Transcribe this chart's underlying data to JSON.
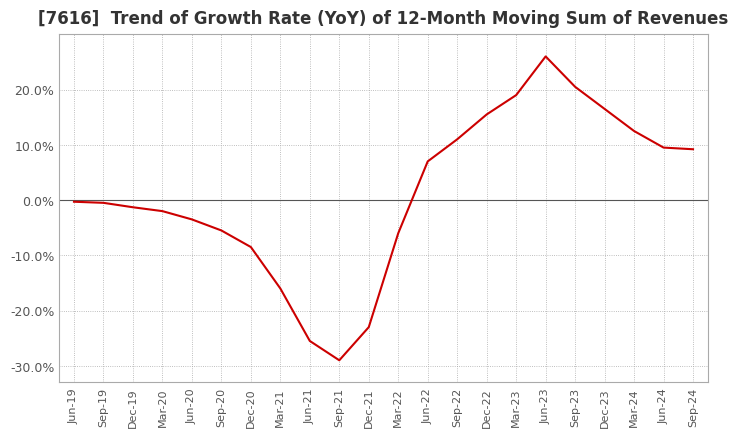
{
  "title": "[7616]  Trend of Growth Rate (YoY) of 12-Month Moving Sum of Revenues",
  "title_fontsize": 12,
  "line_color": "#cc0000",
  "background_color": "#ffffff",
  "grid_color": "#aaaaaa",
  "ylim": [
    -0.33,
    0.3
  ],
  "yticks": [
    -0.3,
    -0.2,
    -0.1,
    0.0,
    0.1,
    0.2
  ],
  "ytick_labels": [
    "-30.0%",
    "-20.0%",
    "-10.0%",
    "0.0%",
    "10.0%",
    "20.0%"
  ],
  "values": [
    -0.003,
    -0.005,
    -0.013,
    -0.02,
    -0.035,
    -0.055,
    -0.085,
    -0.16,
    -0.255,
    -0.29,
    -0.23,
    -0.06,
    0.07,
    0.11,
    0.155,
    0.19,
    0.26,
    0.205,
    0.165,
    0.125,
    0.095,
    0.092
  ],
  "xtick_labels": [
    "Jun-19",
    "Sep-19",
    "Dec-19",
    "Mar-20",
    "Jun-20",
    "Sep-20",
    "Dec-20",
    "Mar-21",
    "Jun-21",
    "Sep-21",
    "Dec-21",
    "Mar-22",
    "Jun-22",
    "Sep-22",
    "Dec-22",
    "Mar-23",
    "Jun-23",
    "Sep-23",
    "Dec-23",
    "Mar-24",
    "Jun-24",
    "Sep-24"
  ]
}
